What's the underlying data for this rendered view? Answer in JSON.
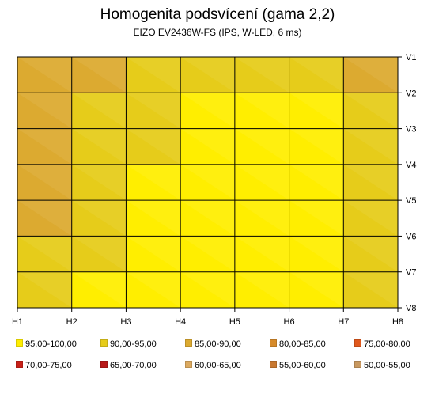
{
  "chart_data": {
    "type": "heatmap",
    "title": "Homogenita podsvícení (gama 2,2)",
    "subtitle": "EIZO EV2436W-FS (IPS, W-LED, 6 ms)",
    "x_ticks": [
      "H1",
      "H2",
      "H3",
      "H4",
      "H5",
      "H6",
      "H7",
      "H8"
    ],
    "y_ticks": [
      "V1",
      "V2",
      "V3",
      "V4",
      "V5",
      "V6",
      "V7",
      "V8"
    ],
    "values": [
      [
        83,
        85,
        90,
        91,
        93,
        93,
        92,
        86
      ],
      [
        86,
        90,
        92,
        93,
        96,
        97,
        94,
        87
      ],
      [
        84,
        89,
        93,
        95,
        97,
        97,
        96,
        87
      ],
      [
        81,
        90,
        94,
        96,
        98,
        97,
        95,
        89
      ],
      [
        83,
        91,
        94,
        96,
        97,
        98,
        96,
        90
      ],
      [
        84,
        91,
        95,
        96,
        97,
        97,
        96,
        93
      ],
      [
        92,
        94,
        95,
        97,
        98,
        97,
        95,
        93
      ],
      [
        94,
        95,
        96,
        97,
        98,
        96,
        92,
        90
      ]
    ],
    "legend": [
      {
        "label": "95,00-100,00",
        "color": "#ffee00"
      },
      {
        "label": "90,00-95,00",
        "color": "#e6cc1a"
      },
      {
        "label": "85,00-90,00",
        "color": "#dcaa30"
      },
      {
        "label": "80,00-85,00",
        "color": "#d68a2a"
      },
      {
        "label": "75,00-80,00",
        "color": "#e0581c"
      },
      {
        "label": "70,00-75,00",
        "color": "#c82018"
      },
      {
        "label": "65,00-70,00",
        "color": "#b81818"
      },
      {
        "label": "60,00-65,00",
        "color": "#dcaa60"
      },
      {
        "label": "55,00-60,00",
        "color": "#c87830"
      },
      {
        "label": "50,00-55,00",
        "color": "#c89860"
      }
    ],
    "grid": true,
    "legend_position": "bottom"
  }
}
